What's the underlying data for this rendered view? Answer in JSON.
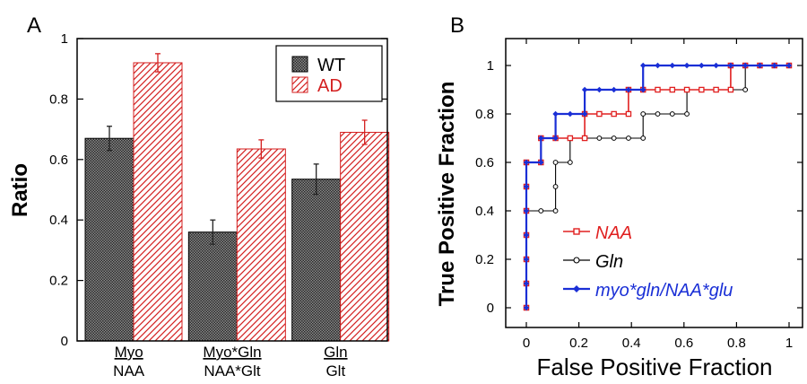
{
  "colors": {
    "wt": "#4d4d4d",
    "ad": "#d42020",
    "naa": "#e02020",
    "gln": "#000000",
    "combo": "#1a2fd6",
    "error_bar_ad": "#d42020",
    "error_bar_wt": "#222222"
  },
  "chart_data": [
    {
      "panel": "A",
      "type": "bar",
      "ylabel": "Ratio",
      "ylim": [
        0,
        1
      ],
      "yticks": [
        "0",
        "0.2",
        "0.4",
        "0.6",
        "0.8",
        "1"
      ],
      "categories": [
        {
          "numerator": "Myo",
          "denominator": "NAA"
        },
        {
          "numerator": "Myo*Gln",
          "denominator": "NAA*Glt"
        },
        {
          "numerator": "Gln",
          "denominator": "Glt"
        }
      ],
      "series": [
        {
          "name": "WT",
          "values": [
            0.67,
            0.36,
            0.535
          ],
          "errors": [
            0.04,
            0.04,
            0.05
          ]
        },
        {
          "name": "AD",
          "values": [
            0.92,
            0.635,
            0.69
          ],
          "errors": [
            0.03,
            0.03,
            0.04
          ]
        }
      ],
      "legend": "top-right",
      "grid": false
    },
    {
      "panel": "B",
      "type": "line",
      "xlabel": "False Positive Fraction",
      "ylabel": "True Positive Fraction",
      "xlim": [
        0,
        1
      ],
      "ylim": [
        0,
        1
      ],
      "xticks": [
        "0",
        "0.2",
        "0.4",
        "0.6",
        "0.8",
        "1"
      ],
      "yticks": [
        "0",
        "0.2",
        "0.4",
        "0.6",
        "0.8",
        "1"
      ],
      "legend": "bottom-right",
      "grid": false,
      "series": [
        {
          "name": "NAA",
          "points": [
            [
              0,
              0
            ],
            [
              0,
              0.1
            ],
            [
              0,
              0.2
            ],
            [
              0,
              0.3
            ],
            [
              0,
              0.4
            ],
            [
              0,
              0.5
            ],
            [
              0,
              0.6
            ],
            [
              0.0556,
              0.6
            ],
            [
              0.0556,
              0.7
            ],
            [
              0.1111,
              0.7
            ],
            [
              0.1667,
              0.7
            ],
            [
              0.2222,
              0.7
            ],
            [
              0.2222,
              0.8
            ],
            [
              0.2778,
              0.8
            ],
            [
              0.3333,
              0.8
            ],
            [
              0.3889,
              0.8
            ],
            [
              0.3889,
              0.9
            ],
            [
              0.4444,
              0.9
            ],
            [
              0.5,
              0.9
            ],
            [
              0.5556,
              0.9
            ],
            [
              0.6111,
              0.9
            ],
            [
              0.6667,
              0.9
            ],
            [
              0.7222,
              0.9
            ],
            [
              0.7778,
              0.9
            ],
            [
              0.7778,
              1
            ],
            [
              0.8333,
              1
            ],
            [
              0.8889,
              1
            ],
            [
              0.9444,
              1
            ],
            [
              1,
              1
            ]
          ]
        },
        {
          "name": "Gln",
          "points": [
            [
              0,
              0
            ],
            [
              0,
              0.1
            ],
            [
              0,
              0.2
            ],
            [
              0,
              0.3
            ],
            [
              0,
              0.4
            ],
            [
              0.0556,
              0.4
            ],
            [
              0.1111,
              0.4
            ],
            [
              0.1111,
              0.5
            ],
            [
              0.1111,
              0.6
            ],
            [
              0.1667,
              0.6
            ],
            [
              0.1667,
              0.7
            ],
            [
              0.2222,
              0.7
            ],
            [
              0.2778,
              0.7
            ],
            [
              0.3333,
              0.7
            ],
            [
              0.3889,
              0.7
            ],
            [
              0.4444,
              0.7
            ],
            [
              0.4444,
              0.8
            ],
            [
              0.5,
              0.8
            ],
            [
              0.5556,
              0.8
            ],
            [
              0.6111,
              0.8
            ],
            [
              0.6111,
              0.9
            ],
            [
              0.6667,
              0.9
            ],
            [
              0.7222,
              0.9
            ],
            [
              0.7778,
              0.9
            ],
            [
              0.8333,
              0.9
            ],
            [
              0.8333,
              1
            ],
            [
              0.8889,
              1
            ],
            [
              0.9444,
              1
            ],
            [
              1,
              1
            ]
          ]
        },
        {
          "name": "myo*gln/NAA*glu",
          "points": [
            [
              0,
              0
            ],
            [
              0,
              0.1
            ],
            [
              0,
              0.2
            ],
            [
              0,
              0.3
            ],
            [
              0,
              0.4
            ],
            [
              0,
              0.5
            ],
            [
              0,
              0.6
            ],
            [
              0.0556,
              0.6
            ],
            [
              0.0556,
              0.7
            ],
            [
              0.1111,
              0.7
            ],
            [
              0.1111,
              0.8
            ],
            [
              0.1667,
              0.8
            ],
            [
              0.2222,
              0.8
            ],
            [
              0.2222,
              0.9
            ],
            [
              0.2778,
              0.9
            ],
            [
              0.3333,
              0.9
            ],
            [
              0.3889,
              0.9
            ],
            [
              0.4444,
              0.9
            ],
            [
              0.4444,
              1
            ],
            [
              0.5,
              1
            ],
            [
              0.5556,
              1
            ],
            [
              0.6111,
              1
            ],
            [
              0.6667,
              1
            ],
            [
              0.7222,
              1
            ],
            [
              0.7778,
              1
            ],
            [
              0.8333,
              1
            ],
            [
              0.8889,
              1
            ],
            [
              0.9444,
              1
            ],
            [
              1,
              1
            ]
          ]
        }
      ]
    }
  ],
  "panel_labels": {
    "a": "A",
    "b": "B"
  }
}
